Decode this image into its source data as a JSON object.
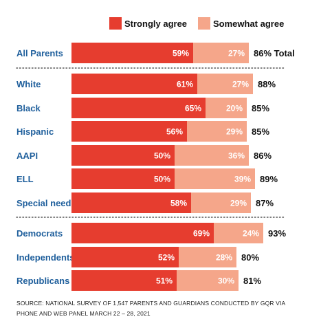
{
  "colors": {
    "strongly": "#e63d2f",
    "somewhat": "#f5a68a",
    "label_blue": "#1f5f9c",
    "divider": "#555555"
  },
  "legend": [
    {
      "label": "Strongly agree",
      "color": "#e63d2f"
    },
    {
      "label": "Somewhat agree",
      "color": "#f5a68a"
    }
  ],
  "chart_data": {
    "type": "bar",
    "orientation": "horizontal",
    "stacked": true,
    "categories": [
      "All Parents",
      "White",
      "Black",
      "Hispanic",
      "AAPI",
      "ELL",
      "Special needs",
      "Democrats",
      "Independents",
      "Republicans"
    ],
    "groups": [
      [
        0
      ],
      [
        1,
        2,
        3,
        4,
        5,
        6
      ],
      [
        7,
        8,
        9
      ]
    ],
    "series": [
      {
        "name": "Strongly agree",
        "values": [
          59,
          61,
          65,
          56,
          50,
          50,
          58,
          69,
          52,
          51
        ],
        "labels": [
          "59%",
          "61%",
          "65%",
          "56%",
          "50%",
          "50%",
          "58%",
          "69%",
          "52%",
          "51%"
        ]
      },
      {
        "name": "Somewhat agree",
        "values": [
          27,
          27,
          20,
          29,
          36,
          39,
          29,
          24,
          28,
          30
        ],
        "labels": [
          "27%",
          "27%",
          "20%",
          "29%",
          "36%",
          "39%",
          "29%",
          "24%",
          "28%",
          "30%"
        ]
      }
    ],
    "totals": [
      86,
      88,
      85,
      85,
      86,
      89,
      87,
      93,
      80,
      81
    ],
    "total_labels": [
      "86% Total",
      "88%",
      "85%",
      "85%",
      "86%",
      "89%",
      "87%",
      "93%",
      "80%",
      "81%"
    ],
    "legend_position": "top-right"
  },
  "source": "SOURCE: NATIONAL SURVEY OF 1,547 PARENTS AND GUARDIANS CONDUCTED BY GQR VIA PHONE AND WEB PANEL MARCH 22 – 28, 2021"
}
